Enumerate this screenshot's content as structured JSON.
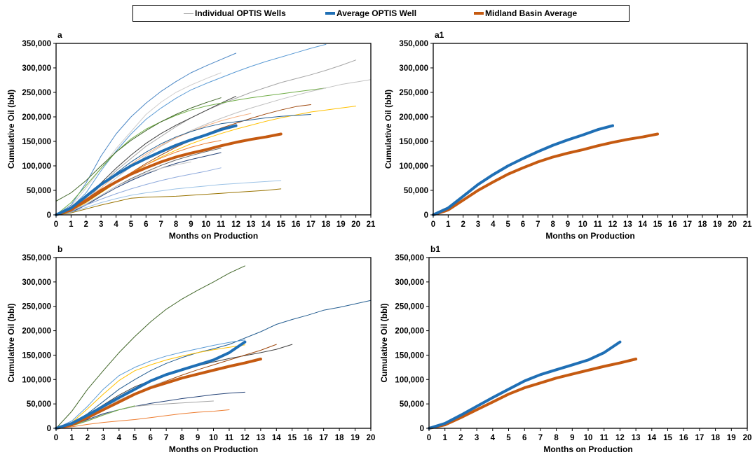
{
  "legend": {
    "items": [
      {
        "label": "Individual OPTIS Wells",
        "color": "#a6a6a6",
        "weight": "thin"
      },
      {
        "label": "Average OPTIS Well",
        "color": "#1f6fb5",
        "weight": "thick"
      },
      {
        "label": "Midland Basin Average",
        "color": "#c55a11",
        "weight": "thick"
      }
    ]
  },
  "colors": {
    "average": "#1f6fb5",
    "midland": "#c55a11",
    "individual_palette": [
      "#5b9bd5",
      "#ed7d31",
      "#a5a5a5",
      "#ffc000",
      "#4472c4",
      "#70ad47",
      "#264478",
      "#9e480e",
      "#636363",
      "#997300",
      "#43682b",
      "#255e91",
      "#f4b183",
      "#9dc3e6",
      "#c9c9c9",
      "#8faadc"
    ]
  },
  "chart_data": [
    {
      "type": "line",
      "panel_label": "a",
      "xlabel": "Months on Production",
      "ylabel": "Cumulative Oil (bbl)",
      "xlim": [
        0,
        21
      ],
      "ylim": [
        0,
        350000
      ],
      "x_ticks": [
        0,
        1,
        2,
        3,
        4,
        5,
        6,
        7,
        8,
        9,
        10,
        11,
        12,
        13,
        14,
        15,
        16,
        17,
        18,
        19,
        20,
        21
      ],
      "y_ticks": [
        0,
        50000,
        100000,
        150000,
        200000,
        250000,
        300000,
        350000
      ],
      "y_tick_labels": [
        "0",
        "50,000",
        "100,000",
        "150,000",
        "200,000",
        "250,000",
        "300,000",
        "350,000"
      ],
      "grid": false,
      "series": [
        {
          "role": "average",
          "color": "#1f6fb5",
          "values": [
            0,
            14000,
            38000,
            62000,
            82000,
            100000,
            115000,
            129000,
            142000,
            153000,
            163000,
            174000,
            182000
          ]
        },
        {
          "role": "midland",
          "color": "#c55a11",
          "values": [
            0,
            10000,
            30000,
            50000,
            67000,
            83000,
            96000,
            108000,
            118000,
            126000,
            133000,
            141000,
            148000,
            154000,
            159000,
            165000
          ]
        },
        {
          "role": "individual",
          "color": "#4a86c5",
          "values": [
            0,
            20000,
            65000,
            120000,
            165000,
            200000,
            228000,
            252000,
            272000,
            290000,
            304000,
            317000,
            330000
          ]
        },
        {
          "role": "individual",
          "color": "#5b9bd5",
          "values": [
            0,
            15000,
            45000,
            90000,
            130000,
            165000,
            195000,
            218000,
            238000,
            255000,
            268000,
            280000,
            292000,
            303000,
            313000,
            322000,
            331000,
            340000,
            348000
          ]
        },
        {
          "role": "individual",
          "color": "#d0cece",
          "values": [
            0,
            18000,
            55000,
            95000,
            135000,
            170000,
            205000,
            230000,
            250000,
            265000,
            278000,
            290000
          ]
        },
        {
          "role": "individual",
          "color": "#a5a5a5",
          "values": [
            0,
            10000,
            30000,
            60000,
            90000,
            115000,
            140000,
            160000,
            180000,
            198000,
            213000,
            226000,
            238000,
            250000,
            260000,
            270000,
            278000,
            286000,
            295000,
            305000,
            316000
          ]
        },
        {
          "role": "individual",
          "color": "#404040",
          "values": [
            0,
            12000,
            35000,
            65000,
            95000,
            122000,
            146000,
            166000,
            183000,
            198000,
            213000,
            228000,
            242000
          ]
        },
        {
          "role": "individual",
          "color": "#70ad47",
          "values": [
            0,
            25000,
            60000,
            95000,
            128000,
            155000,
            175000,
            190000,
            203000,
            214000,
            222000,
            228000,
            234000,
            239000,
            243000,
            247000,
            251000,
            255000,
            259000
          ]
        },
        {
          "role": "individual",
          "color": "#43682b",
          "values": [
            28000,
            45000,
            70000,
            100000,
            128000,
            152000,
            172000,
            190000,
            205000,
            218000,
            229000,
            239000
          ]
        },
        {
          "role": "individual",
          "color": "#c0c0c0",
          "values": [
            0,
            10000,
            28000,
            50000,
            75000,
            98000,
            120000,
            140000,
            157000,
            172000,
            185000,
            197000,
            208000,
            218000,
            227000,
            236000,
            244000,
            252000,
            259000,
            266000,
            271000,
            276000
          ]
        },
        {
          "role": "individual",
          "color": "#ffc000",
          "values": [
            0,
            8000,
            25000,
            45000,
            65000,
            84000,
            102000,
            118000,
            132000,
            145000,
            156000,
            166000,
            175000,
            183000,
            191000,
            198000,
            204000,
            210000,
            214000,
            218000,
            222000
          ]
        },
        {
          "role": "individual",
          "color": "#9e480e",
          "values": [
            0,
            9000,
            26000,
            46000,
            66000,
            86000,
            105000,
            122000,
            138000,
            152000,
            165000,
            177000,
            187000,
            197000,
            206000,
            214000,
            221000,
            225000
          ]
        },
        {
          "role": "individual",
          "color": "#f4b183",
          "values": [
            0,
            10000,
            30000,
            55000,
            80000,
            103000,
            124000,
            142000,
            157000,
            170000,
            182000,
            192000,
            200000,
            207000
          ]
        },
        {
          "role": "individual",
          "color": "#255e91",
          "values": [
            0,
            12000,
            35000,
            60000,
            85000,
            108000,
            128000,
            145000,
            159000,
            170000,
            179000,
            186000,
            190000,
            194000,
            198000,
            201000,
            203000,
            205000
          ]
        },
        {
          "role": "individual",
          "color": "#264478",
          "values": [
            0,
            5000,
            20000,
            38000,
            55000,
            70000,
            83000,
            95000,
            105000,
            113000,
            120000,
            127000
          ]
        },
        {
          "role": "individual",
          "color": "#636363",
          "values": [
            0,
            7000,
            22000,
            40000,
            58000,
            74000,
            88000,
            101000,
            112000,
            121000,
            129000,
            136000
          ]
        },
        {
          "role": "individual",
          "color": "#ed7d31",
          "values": [
            0,
            9000,
            27000,
            48000,
            68000,
            86000,
            102000,
            116000,
            128000,
            138000,
            146000,
            152000
          ]
        },
        {
          "role": "individual",
          "color": "#8faadc",
          "values": [
            0,
            8000,
            20000,
            32000,
            43000,
            53000,
            62000,
            70000,
            77000,
            83000,
            89000,
            96000
          ]
        },
        {
          "role": "individual",
          "color": "#9dc3e6",
          "values": [
            0,
            5000,
            15000,
            25000,
            33000,
            40000,
            45000,
            49000,
            53000,
            56000,
            59000,
            62000,
            64000,
            66000,
            68000,
            70000
          ]
        },
        {
          "role": "individual",
          "color": "#997300",
          "values": [
            0,
            4000,
            12000,
            20000,
            27000,
            34000,
            36000,
            37000,
            38000,
            40000,
            42000,
            44000,
            46000,
            48000,
            50000,
            53000
          ]
        },
        {
          "role": "individual",
          "color": "#c9c9c9",
          "values": [
            0,
            8000,
            22000,
            40000,
            58000,
            72000,
            85000,
            95000,
            102000,
            108000
          ]
        }
      ]
    },
    {
      "type": "line",
      "panel_label": "a1",
      "xlabel": "Months on Production",
      "ylabel": "Cumulative Oil (bbl)",
      "xlim": [
        0,
        21
      ],
      "ylim": [
        0,
        350000
      ],
      "x_ticks": [
        0,
        1,
        2,
        3,
        4,
        5,
        6,
        7,
        8,
        9,
        10,
        11,
        12,
        13,
        14,
        15,
        16,
        17,
        18,
        19,
        20,
        21
      ],
      "y_ticks": [
        0,
        50000,
        100000,
        150000,
        200000,
        250000,
        300000,
        350000
      ],
      "y_tick_labels": [
        "0",
        "50,000",
        "100,000",
        "150,000",
        "200,000",
        "250,000",
        "300,000",
        "350,000"
      ],
      "grid": false,
      "series": [
        {
          "role": "average",
          "color": "#1f6fb5",
          "values": [
            0,
            14000,
            38000,
            62000,
            82000,
            100000,
            115000,
            129000,
            142000,
            153000,
            163000,
            174000,
            182000
          ]
        },
        {
          "role": "midland",
          "color": "#c55a11",
          "values": [
            0,
            10000,
            30000,
            50000,
            67000,
            83000,
            96000,
            108000,
            118000,
            126000,
            133000,
            141000,
            148000,
            154000,
            159000,
            165000
          ]
        }
      ]
    },
    {
      "type": "line",
      "panel_label": "b",
      "xlabel": "Months on Production",
      "ylabel": "Cumulative Oil (bbl)",
      "xlim": [
        0,
        20
      ],
      "ylim": [
        0,
        350000
      ],
      "x_ticks": [
        0,
        1,
        2,
        3,
        4,
        5,
        6,
        7,
        8,
        9,
        10,
        11,
        12,
        13,
        14,
        15,
        16,
        17,
        18,
        19,
        20
      ],
      "y_ticks": [
        0,
        50000,
        100000,
        150000,
        200000,
        250000,
        300000,
        350000
      ],
      "y_tick_labels": [
        "0",
        "50,000",
        "100,000",
        "150,000",
        "200,000",
        "250,000",
        "300,000",
        "350,000"
      ],
      "grid": false,
      "series": [
        {
          "role": "average",
          "color": "#1f6fb5",
          "values": [
            0,
            10000,
            27000,
            45000,
            63000,
            80000,
            97000,
            110000,
            120000,
            130000,
            140000,
            155000,
            177000
          ]
        },
        {
          "role": "midland",
          "color": "#c55a11",
          "values": [
            0,
            7000,
            22000,
            38000,
            54000,
            70000,
            83000,
            93000,
            103000,
            111000,
            119000,
            127000,
            134000,
            142000
          ]
        },
        {
          "role": "individual",
          "color": "#43682b",
          "values": [
            0,
            35000,
            80000,
            118000,
            155000,
            188000,
            218000,
            244000,
            265000,
            283000,
            300000,
            318000,
            333000
          ]
        },
        {
          "role": "individual",
          "color": "#255e91",
          "values": [
            0,
            10000,
            30000,
            55000,
            80000,
            100000,
            118000,
            133000,
            145000,
            155000,
            163000,
            172000,
            185000,
            198000,
            213000,
            223000,
            232000,
            242000,
            248000,
            255000,
            262000
          ]
        },
        {
          "role": "individual",
          "color": "#5b9bd5",
          "values": [
            0,
            15000,
            45000,
            80000,
            108000,
            125000,
            138000,
            148000,
            156000,
            163000,
            170000,
            176000,
            181000
          ]
        },
        {
          "role": "individual",
          "color": "#ffc000",
          "values": [
            0,
            12000,
            40000,
            70000,
            98000,
            118000,
            130000,
            140000,
            148000,
            155000,
            161000,
            166000,
            171000
          ]
        },
        {
          "role": "individual",
          "color": "#404040",
          "values": [
            0,
            9000,
            28000,
            48000,
            68000,
            85000,
            98000,
            109000,
            119000,
            128000,
            136000,
            143000,
            149000,
            155000,
            162000,
            172000
          ]
        },
        {
          "role": "individual",
          "color": "#9e480e",
          "values": [
            0,
            8000,
            25000,
            42000,
            58000,
            72000,
            85000,
            97000,
            109000,
            120000,
            130000,
            140000,
            150000,
            160000,
            172000
          ]
        },
        {
          "role": "individual",
          "color": "#264478",
          "values": [
            0,
            6000,
            18000,
            30000,
            38000,
            45000,
            51000,
            56000,
            61000,
            65000,
            69000,
            72000,
            74000
          ]
        },
        {
          "role": "individual",
          "color": "#ed7d31",
          "values": [
            0,
            3000,
            8000,
            12000,
            15000,
            18000,
            22000,
            26000,
            30000,
            33000,
            35000,
            38000
          ]
        },
        {
          "role": "individual",
          "color": "#a5a5a5",
          "values": [
            0,
            6000,
            16000,
            28000,
            38000,
            45000,
            48000,
            50000,
            52000,
            54000,
            56000
          ]
        },
        {
          "role": "individual",
          "color": "#70ad47",
          "values": [
            0,
            5000,
            15000,
            27000,
            38000,
            46000
          ]
        },
        {
          "role": "individual",
          "color": "#c9c9c9",
          "values": [
            0,
            9000,
            25000,
            42000,
            58000,
            72000,
            86000,
            98000
          ]
        }
      ]
    },
    {
      "type": "line",
      "panel_label": "b1",
      "xlabel": "Months on Production",
      "ylabel": "Cumulative Oil (bbl)",
      "xlim": [
        0,
        20
      ],
      "ylim": [
        0,
        350000
      ],
      "x_ticks": [
        0,
        1,
        2,
        3,
        4,
        5,
        6,
        7,
        8,
        9,
        10,
        11,
        12,
        13,
        14,
        15,
        16,
        17,
        18,
        19,
        20
      ],
      "y_ticks": [
        0,
        50000,
        100000,
        150000,
        200000,
        250000,
        300000,
        350000
      ],
      "y_tick_labels": [
        "0",
        "50,000",
        "100,000",
        "150,000",
        "200,000",
        "250,000",
        "300,000",
        "350,000"
      ],
      "grid": false,
      "series": [
        {
          "role": "average",
          "color": "#1f6fb5",
          "values": [
            0,
            10000,
            27000,
            45000,
            63000,
            80000,
            97000,
            110000,
            120000,
            130000,
            140000,
            155000,
            177000
          ]
        },
        {
          "role": "midland",
          "color": "#c55a11",
          "values": [
            0,
            7000,
            22000,
            38000,
            54000,
            70000,
            83000,
            93000,
            103000,
            111000,
            119000,
            127000,
            134000,
            142000
          ]
        }
      ]
    }
  ]
}
